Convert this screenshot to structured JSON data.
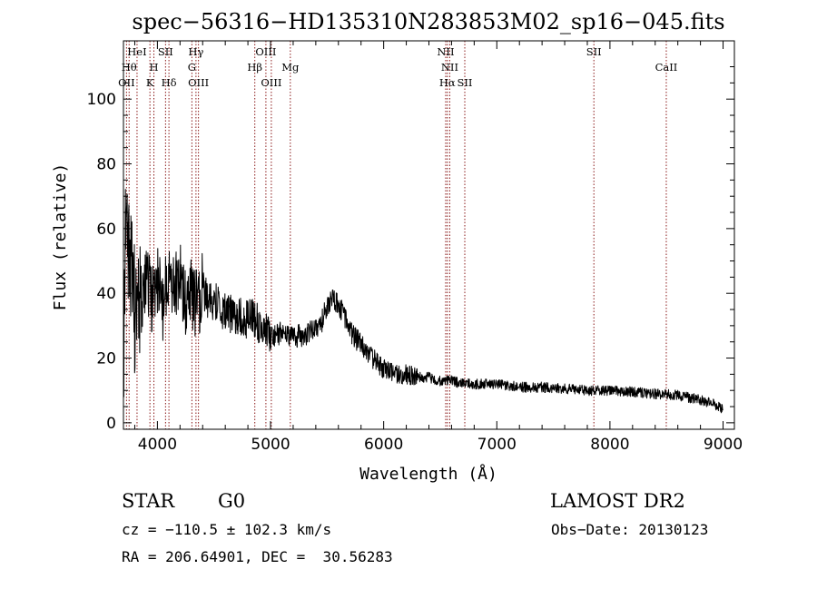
{
  "chart_data": {
    "type": "line",
    "title": "spec−56316−HD135310N283853M02_sp16−045.fits",
    "xlabel": "Wavelength (Å)",
    "ylabel": "Flux (relative)",
    "xlim": [
      3700,
      9100
    ],
    "ylim": [
      -2,
      118
    ],
    "xticks": [
      4000,
      5000,
      6000,
      7000,
      8000,
      9000
    ],
    "yticks": [
      0,
      20,
      40,
      60,
      80,
      100
    ],
    "grid": false,
    "line_color": "#000000",
    "marker_color": "#8b1a1a",
    "anchors": {
      "x": [
        3700,
        3715,
        3730,
        3745,
        3760,
        3780,
        3800,
        3830,
        3860,
        3900,
        3950,
        4000,
        4050,
        4100,
        4150,
        4200,
        4250,
        4300,
        4350,
        4400,
        4450,
        4500,
        4600,
        4700,
        4800,
        4850,
        4900,
        4950,
        5000,
        5050,
        5100,
        5150,
        5200,
        5250,
        5300,
        5350,
        5400,
        5450,
        5500,
        5550,
        5600,
        5650,
        5700,
        5750,
        5800,
        5850,
        5900,
        5950,
        6000,
        6100,
        6200,
        6300,
        6400,
        6500,
        6600,
        6700,
        6800,
        7000,
        7200,
        7400,
        7600,
        7800,
        8000,
        8200,
        8400,
        8600,
        8800,
        8900,
        9000
      ],
      "y": [
        10,
        60,
        50,
        55,
        42,
        52,
        35,
        48,
        38,
        45,
        38,
        44,
        36,
        48,
        40,
        46,
        38,
        40,
        36,
        42,
        37,
        38,
        34,
        33,
        32,
        33,
        30,
        30,
        26,
        27,
        28,
        27,
        26,
        27,
        27,
        28,
        29,
        31,
        36,
        38,
        37,
        33,
        29,
        26,
        25,
        22,
        20,
        18,
        17,
        15,
        15,
        14,
        14,
        13,
        13,
        12,
        12,
        12,
        11,
        11,
        10.5,
        10,
        10,
        9.5,
        9,
        8.5,
        7,
        6,
        4
      ]
    },
    "spectral_lines": [
      {
        "label": "OII",
        "x": 3727,
        "row": 3
      },
      {
        "label": "Hθ",
        "x": 3750,
        "row": 2
      },
      {
        "label": "HeI",
        "x": 3820,
        "row": 1
      },
      {
        "label": "K",
        "x": 3934,
        "row": 3
      },
      {
        "label": "H",
        "x": 3969,
        "row": 2
      },
      {
        "label": "SII",
        "x": 4072,
        "row": 1
      },
      {
        "label": "Hδ",
        "x": 4102,
        "row": 3
      },
      {
        "label": "G",
        "x": 4305,
        "row": 2
      },
      {
        "label": "Hγ",
        "x": 4341,
        "row": 1
      },
      {
        "label": "OIII",
        "x": 4363,
        "row": 3
      },
      {
        "label": "Hβ",
        "x": 4861,
        "row": 2
      },
      {
        "label": "OIII",
        "x": 4959,
        "row": 1
      },
      {
        "label": "OIII",
        "x": 5007,
        "row": 3
      },
      {
        "label": "Mg",
        "x": 5175,
        "row": 2
      },
      {
        "label": "NII",
        "x": 6548,
        "row": 1
      },
      {
        "label": "Hα",
        "x": 6563,
        "row": 3
      },
      {
        "label": "NII",
        "x": 6584,
        "row": 2
      },
      {
        "label": "SII",
        "x": 6717,
        "row": 3
      },
      {
        "label": "SII",
        "x": 7858,
        "row": 1
      },
      {
        "label": "CaII",
        "x": 8498,
        "row": 2
      }
    ]
  },
  "info": {
    "object_class": "STAR",
    "subclass": "G0",
    "survey": "LAMOST DR2",
    "velocity": "cz = −110.5 ± 102.3 km/s",
    "obs_date": "Obs−Date: 20130123",
    "coords": "RA = 206.64901, DEC =  30.56283"
  }
}
